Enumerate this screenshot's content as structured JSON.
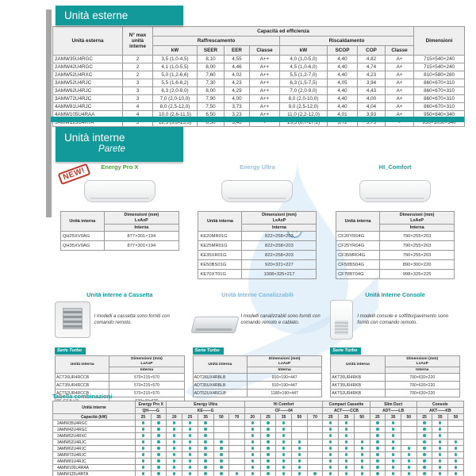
{
  "colors": {
    "teal": "#129a9a",
    "dot": "#2da6a2",
    "green": "#4aa32b",
    "lightblue": "#9fc0dc",
    "red": "#c2382b"
  },
  "outdoor": {
    "title": "Unità esterne",
    "table": {
      "h_unit": "Unità esterna",
      "h_max": "N° max unità interne",
      "h_cap": "Capacità ed efficienza",
      "h_cool": "Raffrescamento",
      "h_heat": "Riscaldamento",
      "h_dim": "Dimensioni",
      "cols": [
        "kW",
        "SEER",
        "EER",
        "Classe",
        "kW",
        "SCOP",
        "COP",
        "Classe"
      ],
      "rows": [
        [
          "2AMW35U4RGC",
          "2",
          "3,5 (1,0-4,5)",
          "8,10",
          "4,55",
          "A++",
          "4,0 (1,0-5,0)",
          "4,40",
          "4,82",
          "A+",
          "715×540×240"
        ],
        [
          "2AMW42U4RGC",
          "2",
          "4,1 (1,0-5,5)",
          "8,00",
          "4,46",
          "A++",
          "4,5 (1,0-6,0)",
          "4,40",
          "4,74",
          "A+",
          "715×540×240"
        ],
        [
          "2AMW52U4RXC",
          "2",
          "5,0 (1,2-6,6)",
          "7,60",
          "4,02",
          "A++",
          "5,5 (1,2-7,0)",
          "4,40",
          "4,23",
          "A+",
          "810×580×280"
        ],
        [
          "3AMW52U4RJC",
          "3",
          "5,5 (1,6-8,2)",
          "7,30",
          "4,23",
          "A++",
          "6,3 (1,5-7,5)",
          "4,05",
          "3,94",
          "A+",
          "860×670×310"
        ],
        [
          "3AMW62U4RJC",
          "3",
          "6,3 (2,0-9,0)",
          "8,00",
          "4,29",
          "A++",
          "7,0 (2,0-9,0)",
          "4,40",
          "4,43",
          "A+",
          "860×670×310"
        ],
        [
          "3AMW72U4RJC",
          "3",
          "7,0 (2,0-10,0)",
          "7,90",
          "4,00",
          "A++",
          "8,0 (2,0-10,0)",
          "4,40",
          "4,00",
          "A+",
          "860×670×310"
        ],
        [
          "4AMW81U4RJC",
          "4",
          "8,0 (2,5-12,0)",
          "7,50",
          "3,73",
          "A++",
          "9,0 (2,5-12,0)",
          "4,40",
          "4,04",
          "A+",
          "860×670×310"
        ],
        [
          "4AMW105U4RAA",
          "4",
          "10,0 (2,6-11,5)",
          "6,50",
          "3,23",
          "A++",
          "11,0 (2,2-12,0)",
          "4,01",
          "3,93",
          "A+",
          "950×840×340"
        ],
        [
          "5AMW125U4RTA",
          "5",
          "12,5 (3,8-15,3)",
          "6,50",
          "3,46",
          "-",
          "13,5 (6,7-17,2)",
          "3,72",
          "3,75",
          "-",
          "950×1050×340"
        ]
      ]
    }
  },
  "wall": {
    "title": "Unità interne",
    "subtitle": "Parete",
    "labels": {
      "unit": "Unità interna",
      "dim1": "Dimensioni (mm)",
      "dim2": "LxAxP",
      "sub": "Interna"
    },
    "products": [
      {
        "name": "Energy Pro X",
        "title_color": "#4aa32b",
        "badge": "NEW!",
        "image": "wall",
        "rows": [
          [
            "QH25XV0AG",
            "877×301×194"
          ],
          [
            "QH35XV0AG",
            "877×301×194"
          ]
        ]
      },
      {
        "name": "Energy Ultra",
        "title_color": "#9fc0dc",
        "image": "wall",
        "rows": [
          [
            "KE20MR01G",
            "822×258×203"
          ],
          [
            "KE25MR01G",
            "822×258×203"
          ],
          [
            "KE35XR01G",
            "822×258×203"
          ],
          [
            "KE50BS01G",
            "920×321×227"
          ],
          [
            "KE70XT01G",
            "1008×325×217"
          ]
        ]
      },
      {
        "name": "HI_Comfort",
        "title_color": "#2f9b9b",
        "image": "wall",
        "rows": [
          [
            "CF20YR04G",
            "790×255×203"
          ],
          [
            "CF25YR04G",
            "790×255×203"
          ],
          [
            "CF35MR04G",
            "790×255×203"
          ],
          [
            "CF50BS04G",
            "890×300×220"
          ],
          [
            "CF70BT04G",
            "998×325×225"
          ]
        ]
      }
    ]
  },
  "sections": [
    {
      "title": "Unità interne a Cassetta",
      "title_color": "#129a9a",
      "image": "cassette",
      "desc": "I modelli a cassetta sono forniti con comando remoto.",
      "serie": "Serie Turbo",
      "rows": [
        [
          "ACT26UR4RCCB",
          "570×215×570"
        ],
        [
          "ACT35UR4RCCB",
          "570×215×570"
        ],
        [
          "ACT52UR4RCCB",
          "570×215×570"
        ],
        [
          "PE-GEA-LD",
          "620×40×620"
        ]
      ]
    },
    {
      "title": "Unità Interne Canalizzabili",
      "title_color": "#85b7dc",
      "image": "duct",
      "desc": "I modelli canalizzabili sono forniti con comando remoto e cablato.",
      "serie": "Serie Turbo",
      "rows": [
        [
          "ADT26UX4RBLB",
          "910×190×447"
        ],
        [
          "ADT35UX4RBLB",
          "910×190×447"
        ],
        [
          "ADT52UX4RCLB",
          "1180×190×447"
        ]
      ]
    },
    {
      "title": "Unità Interne Console",
      "title_color": "#129a9a",
      "image": "console",
      "desc": "I modelli console e soffitto/pavimento sono forniti con comando remoto.",
      "serie": "Serie Turbo",
      "rows": [
        [
          "AKT26UR4RKB",
          "700×630×220"
        ],
        [
          "AKT35UR4RKB",
          "700×630×220"
        ],
        [
          "AKT52UR4RKB",
          "700×630×220"
        ]
      ]
    }
  ],
  "combos": {
    "title": "Tabella combinazioni",
    "h_unit": "Unità interne",
    "h_cap": "Capacità (kW)",
    "groups": [
      {
        "name": "Energy Pro X",
        "code": "QH——G",
        "caps": [
          "25",
          "35"
        ]
      },
      {
        "name": "Energy Ultra",
        "code": "KE——G",
        "caps": [
          "20",
          "25",
          "35",
          "50",
          "70"
        ]
      },
      {
        "name": "Hi Comfort",
        "code": "CF——04",
        "caps": [
          "20",
          "25",
          "35",
          "50",
          "70"
        ]
      },
      {
        "name": "Compact Cassette",
        "code": "ACT——CCB",
        "caps": [
          "25",
          "35",
          "50"
        ]
      },
      {
        "name": "Slim Duct",
        "code": "ADT——LB",
        "caps": [
          "25",
          "35",
          "50"
        ]
      },
      {
        "name": "Console",
        "code": "AKT——KB",
        "caps": [
          "25",
          "35",
          "50"
        ]
      }
    ],
    "rows": [
      {
        "model": "2AMW35U4RGC",
        "dots": [
          1,
          1,
          1,
          1,
          1,
          0,
          0,
          1,
          1,
          1,
          0,
          0,
          1,
          1,
          0,
          1,
          1,
          0,
          1,
          1,
          0
        ]
      },
      {
        "model": "2AMW42U4RGC",
        "dots": [
          1,
          1,
          1,
          1,
          1,
          0,
          0,
          1,
          1,
          1,
          0,
          0,
          1,
          1,
          0,
          1,
          1,
          0,
          1,
          1,
          0
        ]
      },
      {
        "model": "2AMW52U4RXC",
        "dots": [
          1,
          1,
          1,
          1,
          1,
          0,
          0,
          1,
          1,
          1,
          0,
          0,
          1,
          1,
          0,
          1,
          1,
          0,
          1,
          1,
          0
        ]
      },
      {
        "model": "3AMW52U4RJC",
        "dots": [
          1,
          1,
          1,
          1,
          1,
          1,
          0,
          1,
          1,
          1,
          1,
          0,
          1,
          1,
          1,
          1,
          1,
          0,
          1,
          1,
          1
        ]
      },
      {
        "model": "3AMW62U4RJC",
        "dots": [
          1,
          1,
          1,
          1,
          1,
          1,
          0,
          1,
          1,
          1,
          1,
          0,
          1,
          1,
          1,
          1,
          1,
          1,
          1,
          1,
          1
        ]
      },
      {
        "model": "3AMW72U4RJC",
        "dots": [
          1,
          1,
          1,
          1,
          1,
          1,
          0,
          1,
          1,
          1,
          1,
          0,
          1,
          1,
          1,
          1,
          1,
          1,
          1,
          1,
          1
        ]
      },
      {
        "model": "4AMW81U4RJC",
        "dots": [
          1,
          1,
          1,
          1,
          1,
          1,
          0,
          1,
          1,
          1,
          1,
          0,
          1,
          1,
          1,
          1,
          1,
          1,
          1,
          1,
          1
        ]
      },
      {
        "model": "4AMW105U4RAA",
        "dots": [
          1,
          1,
          1,
          1,
          1,
          1,
          0,
          1,
          1,
          1,
          1,
          0,
          1,
          1,
          1,
          1,
          1,
          1,
          1,
          1,
          1
        ]
      },
      {
        "model": "5AMW125U4RTA",
        "dots": [
          1,
          1,
          1,
          1,
          1,
          1,
          1,
          1,
          1,
          1,
          1,
          1,
          1,
          1,
          1,
          1,
          1,
          1,
          1,
          1,
          1
        ]
      }
    ]
  }
}
